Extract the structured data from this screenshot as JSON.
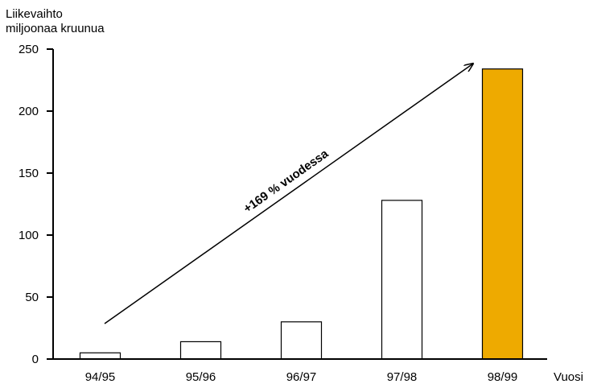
{
  "chart_data": {
    "type": "bar",
    "ylabel_line1": "Liikevaihto",
    "ylabel_line2": "miljoonaa kruunua",
    "xlabel": "Vuosi",
    "categories": [
      "94/95",
      "95/96",
      "96/97",
      "97/98",
      "98/99"
    ],
    "values": [
      5,
      14,
      30,
      128,
      234
    ],
    "bar_colors": [
      "#ffffff",
      "#ffffff",
      "#ffffff",
      "#ffffff",
      "#eeaa00"
    ],
    "ylim": [
      0,
      250
    ],
    "yticks": [
      0,
      50,
      100,
      150,
      200,
      250
    ],
    "grid": false,
    "annotation": "+169 % vuodessa"
  }
}
